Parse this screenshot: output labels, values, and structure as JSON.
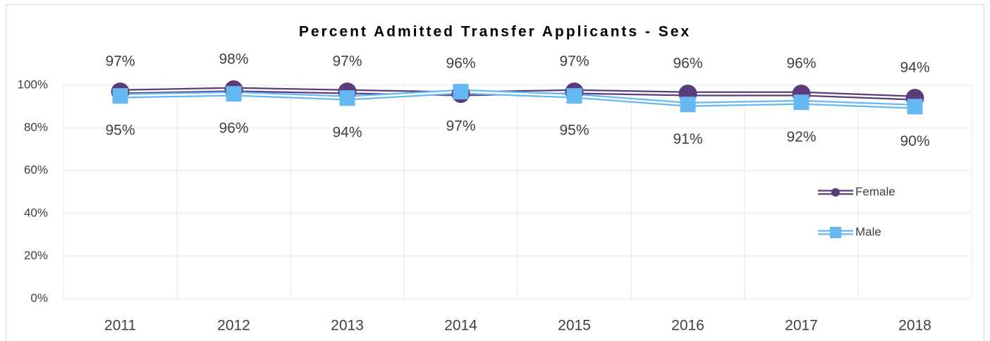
{
  "chart_data": {
    "type": "line",
    "title": "Percent Admitted Transfer Applicants - Sex",
    "categories": [
      "2011",
      "2012",
      "2013",
      "2014",
      "2015",
      "2016",
      "2017",
      "2018"
    ],
    "series": [
      {
        "name": "Female",
        "color": "#5a3c7a",
        "marker": "circle",
        "values": [
          97,
          98,
          97,
          96,
          97,
          96,
          96,
          94
        ],
        "value_labels": [
          "97%",
          "98%",
          "97%",
          "96%",
          "97%",
          "96%",
          "96%",
          "94%"
        ]
      },
      {
        "name": "Male",
        "color": "#66b8f2",
        "marker": "square",
        "values": [
          95,
          96,
          94,
          97,
          95,
          91,
          92,
          90
        ],
        "value_labels": [
          "95%",
          "96%",
          "94%",
          "97%",
          "95%",
          "91%",
          "92%",
          "90%"
        ]
      }
    ],
    "ylim": [
      0,
      100
    ],
    "yticks": [
      {
        "value": 0,
        "label": "0%"
      },
      {
        "value": 20,
        "label": "20%"
      },
      {
        "value": 40,
        "label": "40%"
      },
      {
        "value": 60,
        "label": "60%"
      },
      {
        "value": 80,
        "label": "80%"
      },
      {
        "value": 100,
        "label": "100%"
      }
    ],
    "grid": true,
    "legend": "right"
  }
}
